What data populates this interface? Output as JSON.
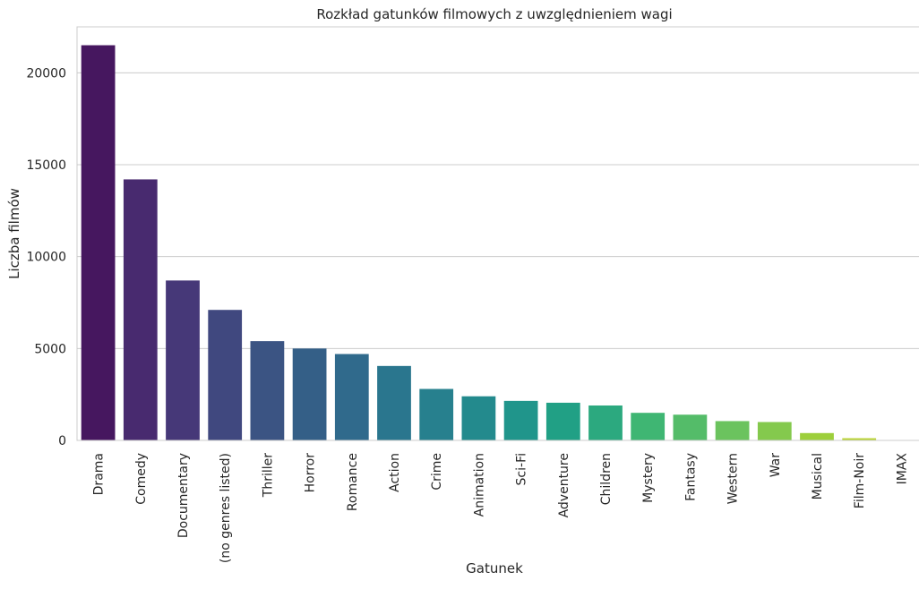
{
  "chart_data": {
    "type": "bar",
    "title": "Rozkład gatunków filmowych z uwzględnieniem wagi",
    "xlabel": "Gatunek",
    "ylabel": "Liczba filmów",
    "ylim": [
      0,
      22500
    ],
    "yticks": [
      0,
      5000,
      10000,
      15000,
      20000
    ],
    "grid": "horizontal",
    "categories": [
      "Drama",
      "Comedy",
      "Documentary",
      "(no genres listed)",
      "Thriller",
      "Horror",
      "Romance",
      "Action",
      "Crime",
      "Animation",
      "Sci-Fi",
      "Adventure",
      "Children",
      "Mystery",
      "Fantasy",
      "Western",
      "War",
      "Musical",
      "Film-Noir",
      "IMAX"
    ],
    "values": [
      21500,
      14200,
      8700,
      7100,
      5400,
      5000,
      4700,
      4050,
      2800,
      2400,
      2150,
      2050,
      1900,
      1500,
      1400,
      1050,
      1000,
      400,
      120,
      10
    ],
    "colors": [
      "#46175f",
      "#482a6f",
      "#463878",
      "#40487f",
      "#3b5483",
      "#345f87",
      "#306a8c",
      "#2a768e",
      "#27808e",
      "#238a8d",
      "#20958b",
      "#21a085",
      "#2ca97f",
      "#3fb673",
      "#54bc69",
      "#6bc35e",
      "#84c94d",
      "#9dcf3b",
      "#bad334",
      "#d4d52d"
    ]
  }
}
